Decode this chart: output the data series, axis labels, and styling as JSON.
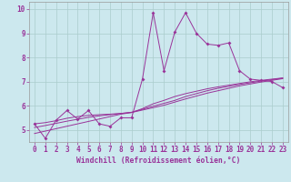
{
  "xlabel": "Windchill (Refroidissement éolien,°C)",
  "xlim": [
    -0.5,
    23.5
  ],
  "ylim": [
    4.5,
    10.3
  ],
  "background_color": "#cce8ee",
  "line_color": "#993399",
  "grid_color": "#aacccc",
  "x_data": [
    0,
    1,
    2,
    3,
    4,
    5,
    6,
    7,
    8,
    9,
    10,
    11,
    12,
    13,
    14,
    15,
    16,
    17,
    18,
    19,
    20,
    21,
    22,
    23
  ],
  "y_main": [
    5.25,
    4.65,
    5.4,
    5.8,
    5.45,
    5.8,
    5.25,
    5.15,
    5.5,
    5.5,
    7.1,
    9.85,
    7.45,
    9.05,
    9.85,
    9.0,
    8.55,
    8.5,
    8.6,
    7.45,
    7.1,
    7.05,
    7.0,
    6.75
  ],
  "y_line1": [
    4.85,
    4.95,
    5.05,
    5.15,
    5.25,
    5.35,
    5.45,
    5.55,
    5.65,
    5.72,
    5.82,
    5.92,
    6.02,
    6.15,
    6.28,
    6.4,
    6.52,
    6.62,
    6.72,
    6.82,
    6.9,
    6.98,
    7.05,
    7.12
  ],
  "y_line2": [
    5.1,
    5.18,
    5.27,
    5.36,
    5.44,
    5.52,
    5.58,
    5.63,
    5.68,
    5.73,
    5.85,
    5.98,
    6.1,
    6.22,
    6.38,
    6.5,
    6.62,
    6.72,
    6.8,
    6.88,
    6.95,
    7.02,
    7.08,
    7.14
  ],
  "y_line3": [
    5.25,
    5.3,
    5.38,
    5.48,
    5.55,
    5.6,
    5.63,
    5.65,
    5.68,
    5.72,
    5.88,
    6.08,
    6.22,
    6.38,
    6.5,
    6.6,
    6.7,
    6.78,
    6.85,
    6.92,
    6.99,
    7.05,
    7.1,
    7.15
  ],
  "ytick_values": [
    5,
    6,
    7,
    8,
    9,
    10
  ],
  "xtick_labels": [
    "0",
    "1",
    "2",
    "3",
    "4",
    "5",
    "6",
    "7",
    "8",
    "9",
    "10",
    "11",
    "12",
    "13",
    "14",
    "15",
    "16",
    "17",
    "18",
    "19",
    "20",
    "21",
    "22",
    "23"
  ],
  "fontsize_xlabel": 5.8,
  "fontsize_tick": 5.5
}
